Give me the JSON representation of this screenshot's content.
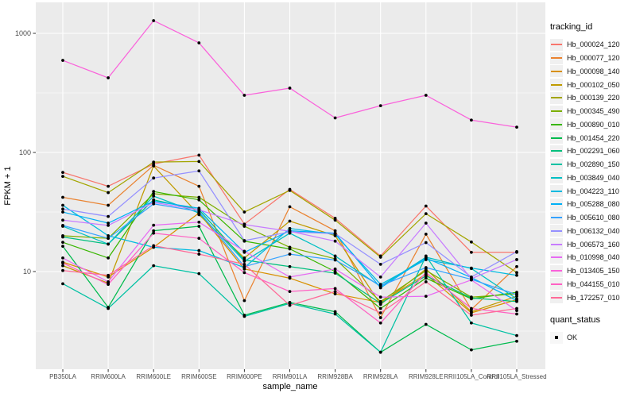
{
  "figure": {
    "y_axis_title": "FPKM + 1",
    "x_axis_title": "sample_name"
  },
  "legend": {
    "tracking_title": "tracking_id",
    "quant_title": "quant_status",
    "quant_items": [
      {
        "label": "OK",
        "shape": "black-square-point"
      }
    ]
  },
  "chart_data": {
    "type": "line",
    "x_label": "sample_name",
    "y_label": "FPKM + 1",
    "y_scale": "log10",
    "grid": "major-and-minor",
    "legend_position": "right",
    "panel_background": "#EBEBEB",
    "gridline_color": "#FFFFFF",
    "point_color": "#000000",
    "ylim_approx": [
      1.5,
      1760
    ],
    "y_ticks": [
      {
        "label": "10",
        "value": 10
      },
      {
        "label": "100",
        "value": 100
      },
      {
        "label": "1000",
        "value": 1000
      }
    ],
    "categories": [
      "PB350LA",
      "RRIM600LA",
      "RRIM600LE",
      "RRIM600SE",
      "RRIM600PE",
      "RRIM901LA",
      "RRIM928BA",
      "RRIM928LA",
      "RRIM928LE",
      "RRII105LA_Control",
      "RRII105LA_Stressed"
    ],
    "series": [
      {
        "name": "Hb_000024_120",
        "color": "#F8766D",
        "values": [
          68,
          52,
          80,
          95,
          25,
          49,
          28,
          13.5,
          35.5,
          14.5,
          14.5
        ]
      },
      {
        "name": "Hb_000077_120",
        "color": "#EA8331",
        "values": [
          42,
          36,
          78,
          52,
          5.7,
          35,
          22,
          4.1,
          20.6,
          4.8,
          11
        ]
      },
      {
        "name": "Hb_000098_140",
        "color": "#D89000",
        "values": [
          12,
          9,
          16,
          31,
          10.5,
          8.8,
          6.5,
          5.5,
          9.5,
          4.5,
          5.8
        ]
      },
      {
        "name": "Hb_000102_050",
        "color": "#C09B00",
        "values": [
          11.2,
          8,
          77,
          30,
          13,
          26.5,
          20,
          5.3,
          10.5,
          4.6,
          6.2
        ]
      },
      {
        "name": "Hb_000139_220",
        "color": "#A3A500",
        "values": [
          63,
          46,
          83,
          84,
          31.6,
          48,
          27,
          13.2,
          30.6,
          17.7,
          9.8
        ]
      },
      {
        "name": "Hb_000345_490",
        "color": "#7CAF00",
        "values": [
          20,
          19,
          45,
          42,
          24,
          16,
          12.8,
          5.6,
          10.2,
          6.1,
          6.5
        ]
      },
      {
        "name": "Hb_000890_010",
        "color": "#39B600",
        "values": [
          17.6,
          13,
          47,
          40,
          18,
          15.5,
          10,
          4.9,
          8.8,
          5.9,
          6.7
        ]
      },
      {
        "name": "Hb_001454_220",
        "color": "#00BB4E",
        "values": [
          16.3,
          5,
          22,
          24,
          4.3,
          5.5,
          4.6,
          2.1,
          3.6,
          2.2,
          2.6
        ]
      },
      {
        "name": "Hb_002291_060",
        "color": "#00BF7D",
        "values": [
          19.5,
          17,
          40,
          33,
          12.5,
          11,
          9.7,
          5.4,
          9.2,
          6,
          5.6
        ]
      },
      {
        "name": "Hb_002890_150",
        "color": "#00C1A3",
        "values": [
          7.9,
          4.9,
          11.2,
          9.6,
          4.2,
          5.4,
          4.4,
          2.1,
          13.5,
          3.7,
          2.9
        ]
      },
      {
        "name": "Hb_003849_040",
        "color": "#00BFC4",
        "values": [
          24,
          17,
          43,
          31,
          12.2,
          21,
          13.5,
          7.5,
          13.2,
          10.6,
          5.9
        ]
      },
      {
        "name": "Hb_004223_110",
        "color": "#00BAE0",
        "values": [
          36,
          20,
          16,
          15,
          10.8,
          23,
          20.5,
          7.8,
          12.6,
          10.7,
          9.3
        ]
      },
      {
        "name": "Hb_005288_080",
        "color": "#00B0F6",
        "values": [
          31.6,
          25.5,
          39,
          34,
          14.5,
          22,
          21,
          7.3,
          13,
          8.9,
          5.7
        ]
      },
      {
        "name": "Hb_005610_080",
        "color": "#35A2FF",
        "values": [
          24.4,
          19,
          37,
          32,
          11,
          14,
          12.5,
          7.6,
          10.8,
          8.6,
          6.4
        ]
      },
      {
        "name": "Hb_006132_040",
        "color": "#9590FF",
        "values": [
          33.5,
          29,
          61,
          70,
          18.2,
          21.5,
          20.8,
          11.5,
          17.5,
          9,
          14.7
        ]
      },
      {
        "name": "Hb_006573_160",
        "color": "#C77CFF",
        "values": [
          27,
          24.4,
          38,
          33,
          24.8,
          21.8,
          18,
          9,
          25.5,
          8.7,
          12.6
        ]
      },
      {
        "name": "Hb_010998_040",
        "color": "#E76BF3",
        "values": [
          13,
          8.2,
          24.5,
          26,
          14.8,
          9,
          10.5,
          6.1,
          6.2,
          8.5,
          4.7
        ]
      },
      {
        "name": "Hb_013405_150",
        "color": "#FA62DB",
        "values": [
          593,
          423,
          1279,
          832,
          302,
          347,
          195,
          247,
          302,
          187,
          163
        ]
      },
      {
        "name": "Hb_044155_010",
        "color": "#FF61C3",
        "values": [
          11.8,
          7.8,
          21,
          19,
          9.8,
          6.8,
          7.2,
          3.7,
          9.8,
          4.9,
          4.4
        ]
      },
      {
        "name": "Hb_172257_010",
        "color": "#FF6A98",
        "values": [
          10.2,
          9.3,
          16.5,
          14,
          11.5,
          5.2,
          6.8,
          4.5,
          8.2,
          4.3,
          4.9
        ]
      }
    ]
  }
}
